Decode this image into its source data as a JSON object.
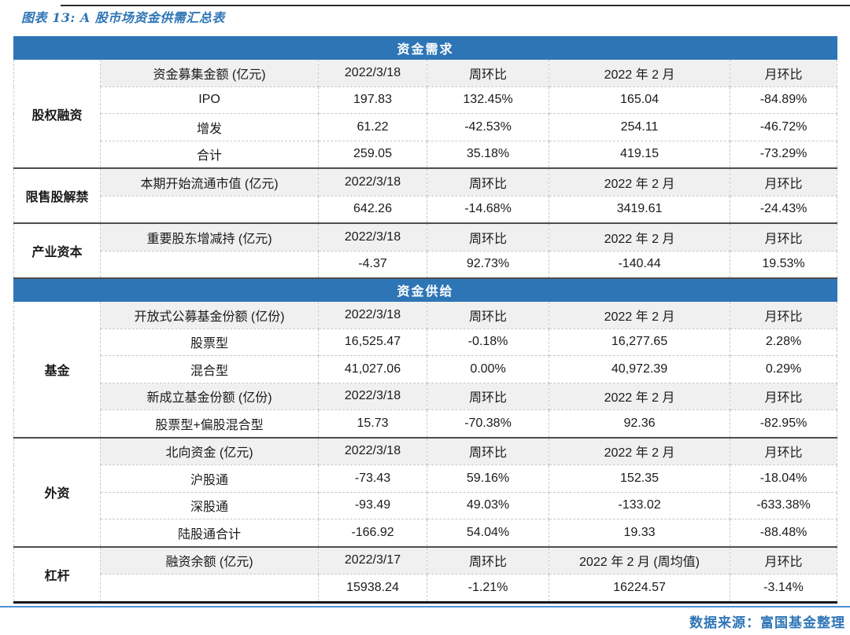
{
  "page": {
    "title": "图表 13: A 股市场资金供需汇总表",
    "source": "数据来源：富国基金整理"
  },
  "colors": {
    "accent_blue": "#2E75B6",
    "positive_red": "#E60000",
    "negative_green": "#00B050",
    "rule_blue": "#4A90D2"
  },
  "table": {
    "rows": [
      {
        "type": "section",
        "label": "资金需求"
      },
      {
        "type": "row",
        "kind": "head",
        "group": {
          "label": "股权融资",
          "span": 4
        },
        "cells": [
          {
            "t": "资金募集金额 (亿元)"
          },
          {
            "t": "2022/3/18"
          },
          {
            "t": "周环比"
          },
          {
            "t": "2022 年 2 月"
          },
          {
            "t": "月环比"
          }
        ]
      },
      {
        "type": "row",
        "kind": "data",
        "cells": [
          {
            "t": "IPO"
          },
          {
            "t": "197.83"
          },
          {
            "t": "132.45%",
            "c": "red"
          },
          {
            "t": "165.04"
          },
          {
            "t": "-84.89%",
            "c": "green"
          }
        ]
      },
      {
        "type": "row",
        "kind": "data",
        "cells": [
          {
            "t": "增发"
          },
          {
            "t": "61.22"
          },
          {
            "t": "-42.53%",
            "c": "green"
          },
          {
            "t": "254.11"
          },
          {
            "t": "-46.72%",
            "c": "green"
          }
        ]
      },
      {
        "type": "row",
        "kind": "data",
        "cells": [
          {
            "t": "合计"
          },
          {
            "t": "259.05"
          },
          {
            "t": "35.18%",
            "c": "red"
          },
          {
            "t": "419.15"
          },
          {
            "t": "-73.29%",
            "c": "green"
          }
        ]
      },
      {
        "type": "row",
        "kind": "head",
        "sep": true,
        "group": {
          "label": "限售股解禁",
          "span": 2
        },
        "cells": [
          {
            "t": "本期开始流通市值 (亿元)"
          },
          {
            "t": "2022/3/18"
          },
          {
            "t": "周环比"
          },
          {
            "t": "2022 年 2 月"
          },
          {
            "t": "月环比"
          }
        ]
      },
      {
        "type": "row",
        "kind": "data",
        "cells": [
          {
            "t": ""
          },
          {
            "t": "642.26"
          },
          {
            "t": "-14.68%",
            "c": "red"
          },
          {
            "t": "3419.61"
          },
          {
            "t": "-24.43%",
            "c": "green"
          }
        ]
      },
      {
        "type": "row",
        "kind": "head",
        "sep": true,
        "group": {
          "label": "产业资本",
          "span": 2
        },
        "cells": [
          {
            "t": "重要股东增减持 (亿元)"
          },
          {
            "t": "2022/3/18"
          },
          {
            "t": "周环比"
          },
          {
            "t": "2022 年 2 月"
          },
          {
            "t": "月环比"
          }
        ]
      },
      {
        "type": "row",
        "kind": "data",
        "cells": [
          {
            "t": ""
          },
          {
            "t": "-4.37"
          },
          {
            "t": "92.73%",
            "c": "red"
          },
          {
            "t": "-140.44"
          },
          {
            "t": "19.53%",
            "c": "red"
          }
        ]
      },
      {
        "type": "section",
        "label": "资金供给",
        "sep": true
      },
      {
        "type": "row",
        "kind": "head",
        "group": {
          "label": "基金",
          "span": 5
        },
        "cells": [
          {
            "t": "开放式公募基金份额 (亿份)"
          },
          {
            "t": "2022/3/18"
          },
          {
            "t": "周环比"
          },
          {
            "t": "2022 年 2 月"
          },
          {
            "t": "月环比"
          }
        ]
      },
      {
        "type": "row",
        "kind": "data",
        "cells": [
          {
            "t": "股票型"
          },
          {
            "t": "16,525.47"
          },
          {
            "t": "-0.18%",
            "c": "green"
          },
          {
            "t": "16,277.65"
          },
          {
            "t": "2.28%",
            "c": "red"
          }
        ]
      },
      {
        "type": "row",
        "kind": "data",
        "cells": [
          {
            "t": "混合型"
          },
          {
            "t": "41,027.06"
          },
          {
            "t": "0.00%"
          },
          {
            "t": "40,972.39"
          },
          {
            "t": "0.29%",
            "c": "red"
          }
        ]
      },
      {
        "type": "row",
        "kind": "head",
        "cells": [
          {
            "t": "新成立基金份额 (亿份)"
          },
          {
            "t": "2022/3/18"
          },
          {
            "t": "周环比"
          },
          {
            "t": "2022 年 2 月"
          },
          {
            "t": "月环比"
          }
        ]
      },
      {
        "type": "row",
        "kind": "data",
        "cells": [
          {
            "t": "股票型+偏股混合型"
          },
          {
            "t": "15.73"
          },
          {
            "t": "-70.38%",
            "c": "green"
          },
          {
            "t": "92.36"
          },
          {
            "t": "-82.95%",
            "c": "green"
          }
        ]
      },
      {
        "type": "row",
        "kind": "head",
        "sep": true,
        "group": {
          "label": "外资",
          "span": 4
        },
        "cells": [
          {
            "t": "北向资金 (亿元)"
          },
          {
            "t": "2022/3/18"
          },
          {
            "t": "周环比"
          },
          {
            "t": "2022 年 2 月"
          },
          {
            "t": "月环比"
          }
        ]
      },
      {
        "type": "row",
        "kind": "data",
        "cells": [
          {
            "t": "沪股通"
          },
          {
            "t": "-73.43"
          },
          {
            "t": "59.16%",
            "c": "red"
          },
          {
            "t": "152.35"
          },
          {
            "t": "-18.04%",
            "c": "green"
          }
        ]
      },
      {
        "type": "row",
        "kind": "data",
        "cells": [
          {
            "t": "深股通"
          },
          {
            "t": "-93.49"
          },
          {
            "t": "49.03%",
            "c": "red"
          },
          {
            "t": "-133.02"
          },
          {
            "t": "-633.38%",
            "c": "green"
          }
        ]
      },
      {
        "type": "row",
        "kind": "data",
        "cells": [
          {
            "t": "陆股通合计"
          },
          {
            "t": "-166.92"
          },
          {
            "t": "54.04%",
            "c": "red"
          },
          {
            "t": "19.33"
          },
          {
            "t": "-88.48%",
            "c": "green"
          }
        ]
      },
      {
        "type": "row",
        "kind": "head",
        "sep": true,
        "group": {
          "label": "杠杆",
          "span": 2
        },
        "cells": [
          {
            "t": "融资余额 (亿元)"
          },
          {
            "t": "2022/3/17"
          },
          {
            "t": "周环比"
          },
          {
            "t": "2022 年 2 月 (周均值)"
          },
          {
            "t": "月环比"
          }
        ]
      },
      {
        "type": "row",
        "kind": "data",
        "cells": [
          {
            "t": ""
          },
          {
            "t": "15938.24"
          },
          {
            "t": "-1.21%",
            "c": "green"
          },
          {
            "t": "16224.57"
          },
          {
            "t": "-3.14%",
            "c": "green"
          }
        ]
      }
    ]
  }
}
